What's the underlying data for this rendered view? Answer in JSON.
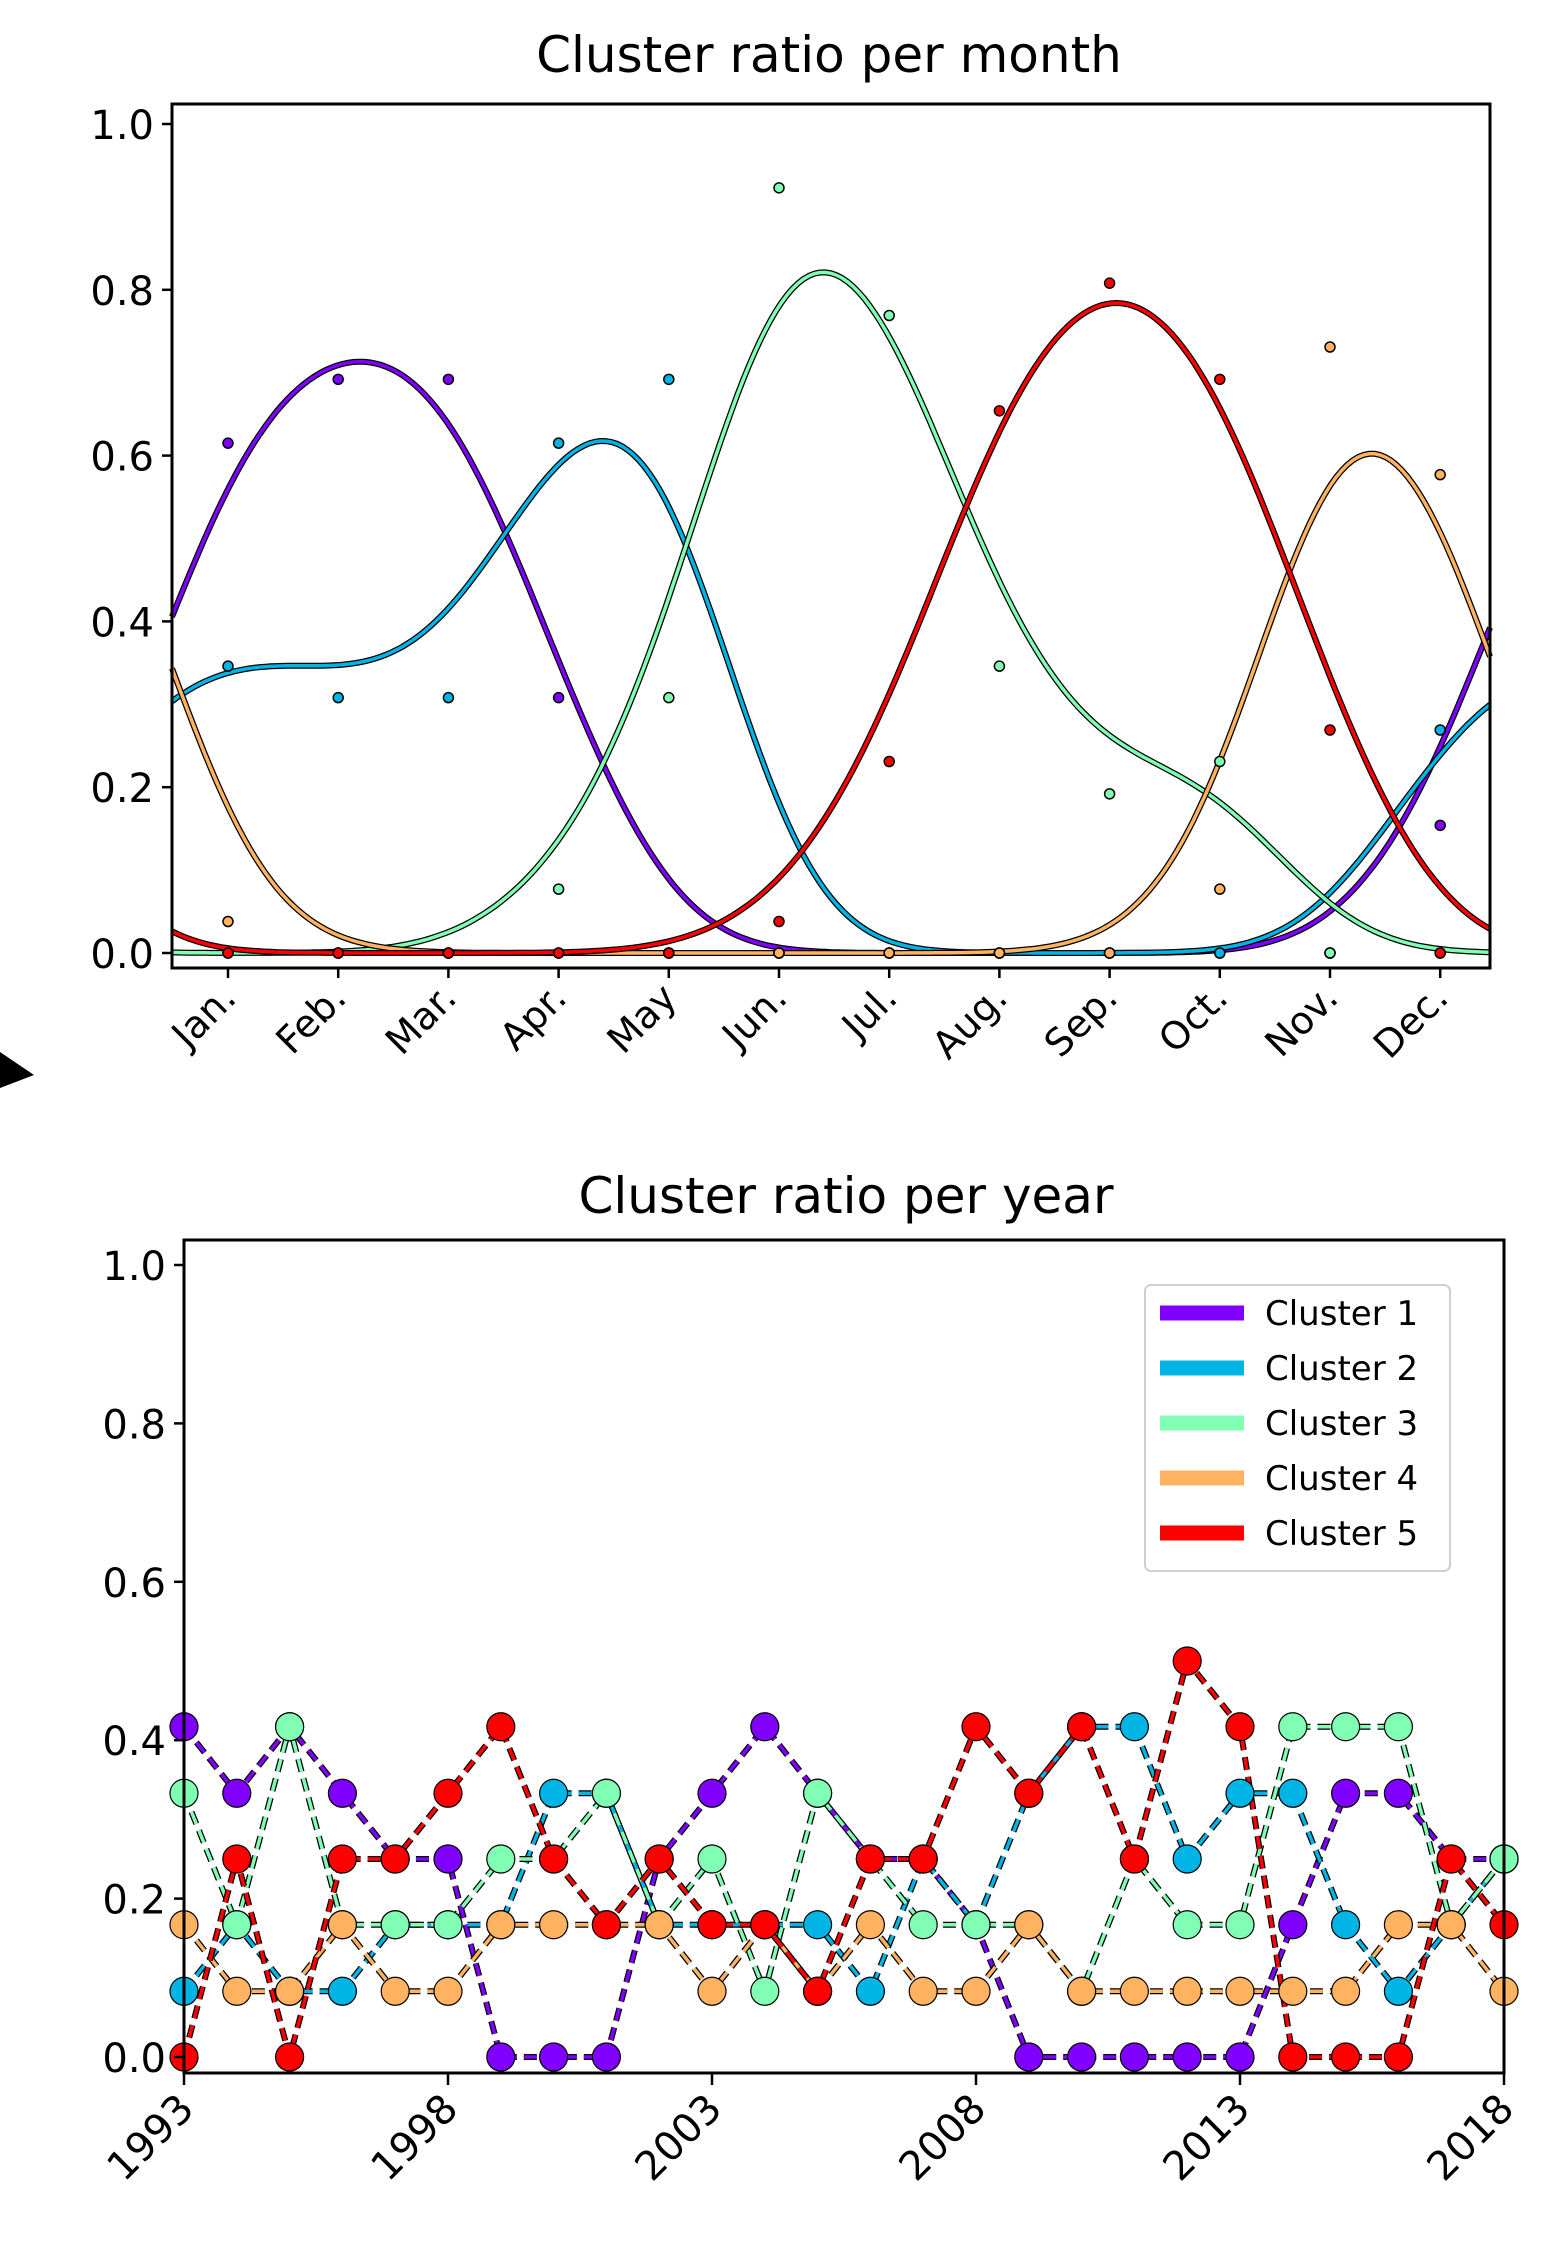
{
  "chart_data": [
    {
      "type": "line",
      "title": "Cluster ratio per month",
      "xlabel": "",
      "ylabel": "",
      "categories": [
        "Jan.",
        "Feb.",
        "Mar.",
        "Apr.",
        "May",
        "Jun.",
        "Jul.",
        "Aug.",
        "Sep.",
        "Oct.",
        "Nov.",
        "Dec."
      ],
      "ylim": [
        -0.02,
        1.02
      ],
      "yticks": [
        "0.0",
        "0.2",
        "0.4",
        "0.6",
        "0.8",
        "1.0"
      ],
      "grid": false,
      "series": [
        {
          "color": "#8000ff",
          "values": [
            0.615,
            0.692,
            0.692,
            0.308,
            0.0,
            0.0,
            0.0,
            0.0,
            0.0,
            0.0,
            0.0,
            0.154
          ]
        },
        {
          "color": "#00b4e6",
          "values": [
            0.346,
            0.308,
            0.308,
            0.615,
            0.692,
            0.0,
            0.0,
            0.0,
            0.0,
            0.0,
            0.0,
            0.269
          ]
        },
        {
          "color": "#80ffb4",
          "values": [
            0.0,
            0.0,
            0.0,
            0.077,
            0.308,
            0.923,
            0.769,
            0.346,
            0.192,
            0.231,
            0.0,
            0.0
          ]
        },
        {
          "color": "#ffb360",
          "values": [
            0.038,
            0.0,
            0.0,
            0.0,
            0.0,
            0.0,
            0.0,
            0.0,
            0.0,
            0.077,
            0.731,
            0.577
          ]
        },
        {
          "color": "#ff0000",
          "values": [
            0.0,
            0.0,
            0.0,
            0.0,
            0.0,
            0.038,
            0.231,
            0.654,
            0.808,
            0.692,
            0.269,
            0.0
          ]
        }
      ]
    },
    {
      "type": "line",
      "title": "Cluster ratio per year",
      "xlabel": "",
      "ylabel": "",
      "x": [
        1993,
        1994,
        1995,
        1996,
        1997,
        1998,
        1999,
        2000,
        2001,
        2002,
        2003,
        2004,
        2005,
        2006,
        2007,
        2008,
        2009,
        2010,
        2011,
        2012,
        2013,
        2014,
        2015,
        2016,
        2017,
        2018
      ],
      "xticks": [
        "1993",
        "1998",
        "2003",
        "2008",
        "2013",
        "2018"
      ],
      "yticks": [
        "0.0",
        "0.2",
        "0.4",
        "0.6",
        "0.8",
        "1.0"
      ],
      "ylim": [
        -0.02,
        1.02
      ],
      "grid": false,
      "legend_position": "top-right",
      "series": [
        {
          "name": "Cluster 1",
          "color": "#8000ff",
          "values": [
            0.417,
            0.333,
            0.417,
            0.333,
            0.25,
            0.25,
            0.0,
            0.0,
            0.0,
            0.25,
            0.333,
            0.417,
            0.333,
            0.25,
            0.25,
            0.167,
            0.0,
            0.0,
            0.0,
            0.0,
            0.0,
            0.167,
            0.333,
            0.333,
            0.25,
            0.25
          ]
        },
        {
          "name": "Cluster 2",
          "color": "#00b4e6",
          "values": [
            0.083,
            0.167,
            0.083,
            0.083,
            0.167,
            0.167,
            0.167,
            0.333,
            0.333,
            0.167,
            0.167,
            0.167,
            0.167,
            0.083,
            0.25,
            0.167,
            0.333,
            0.417,
            0.417,
            0.25,
            0.333,
            0.333,
            0.167,
            0.083,
            0.167,
            0.25
          ]
        },
        {
          "name": "Cluster 3",
          "color": "#80ffb4",
          "values": [
            0.333,
            0.167,
            0.417,
            0.167,
            0.167,
            0.167,
            0.25,
            0.25,
            0.333,
            0.167,
            0.25,
            0.083,
            0.333,
            0.25,
            0.167,
            0.167,
            0.167,
            0.083,
            0.25,
            0.167,
            0.167,
            0.417,
            0.417,
            0.417,
            0.167,
            0.25
          ]
        },
        {
          "name": "Cluster 4",
          "color": "#ffb360",
          "values": [
            0.167,
            0.083,
            0.083,
            0.167,
            0.083,
            0.083,
            0.167,
            0.167,
            0.167,
            0.167,
            0.083,
            0.167,
            0.083,
            0.167,
            0.083,
            0.083,
            0.167,
            0.083,
            0.083,
            0.083,
            0.083,
            0.083,
            0.083,
            0.167,
            0.167,
            0.083
          ]
        },
        {
          "name": "Cluster 5",
          "color": "#ff0000",
          "values": [
            0.0,
            0.25,
            0.0,
            0.25,
            0.25,
            0.333,
            0.417,
            0.25,
            0.167,
            0.25,
            0.167,
            0.167,
            0.083,
            0.25,
            0.25,
            0.417,
            0.333,
            0.417,
            0.25,
            0.5,
            0.417,
            0.0,
            0.0,
            0.0,
            0.25,
            0.167
          ]
        }
      ]
    }
  ]
}
